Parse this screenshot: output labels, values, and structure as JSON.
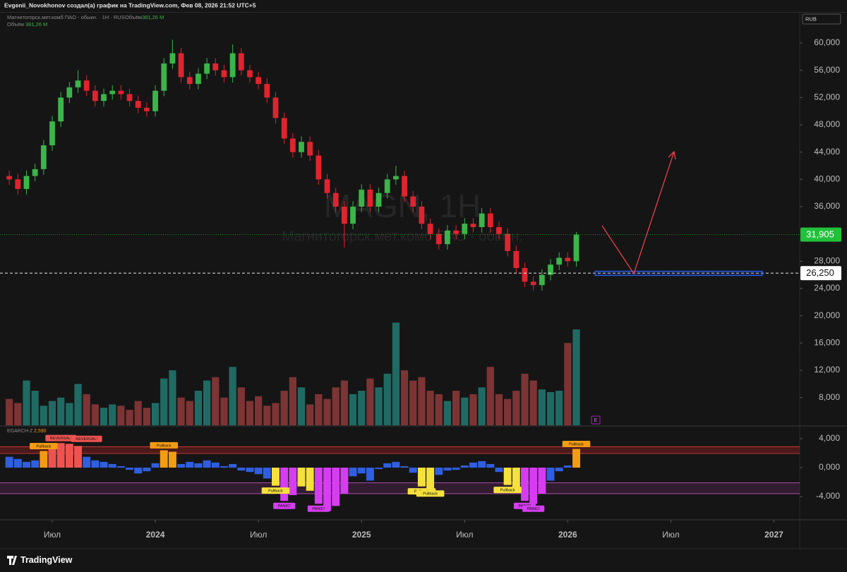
{
  "header": {
    "text": "Evgenii_Novokhonov создал(а) график на TradingView.com, Фев 08, 2026 21:52 UTC+5"
  },
  "chart_data": {
    "type": "candlestick",
    "symbol": "Магнитогорск.мет.комб ПАО - обыкн. · 1Н · RUS",
    "currency": "RUB",
    "watermark": {
      "ticker": "MAGN, 1Н",
      "name": "Магнитогорск.мет.комб ПАО - обыкн."
    },
    "x": [
      3.5,
      4,
      4.5,
      5,
      5.5,
      6,
      6.5,
      7,
      7.5,
      8,
      8.5,
      9,
      9.5,
      10,
      10.5,
      11,
      11.5,
      12,
      12.5,
      13,
      13.5,
      14,
      14.5,
      15,
      15.5,
      16,
      16.5,
      17,
      17.5,
      18,
      18.5,
      19,
      19.5,
      20,
      20.5,
      21,
      21.5,
      22,
      22.5,
      23,
      23.5,
      24,
      24.5,
      25,
      25.5,
      26,
      26.5,
      27,
      27.5,
      28,
      28.5,
      29,
      29.5,
      30,
      30.5,
      31,
      31.5,
      32,
      32.5,
      33,
      33.5,
      34,
      34.5,
      35,
      35.5,
      36,
      36.5
    ],
    "open": [
      40500,
      40000,
      38600,
      40500,
      41500,
      45000,
      48500,
      52000,
      53500,
      54500,
      53000,
      51500,
      52500,
      53000,
      52500,
      51500,
      50500,
      50000,
      53000,
      57000,
      58500,
      55000,
      54000,
      55500,
      57000,
      56000,
      55000,
      58500,
      56000,
      55000,
      54000,
      52000,
      49000,
      46000,
      44000,
      45500,
      43500,
      40000,
      38000,
      36000,
      33500,
      36000,
      38500,
      36000,
      38000,
      40000,
      40500,
      37500,
      36000,
      33500,
      32000,
      30500,
      32500,
      32000,
      33500,
      33000,
      35000,
      33000,
      32000,
      29500,
      27000,
      25000,
      24500,
      26000,
      27500,
      28500,
      28000
    ],
    "high": [
      41300,
      40800,
      41300,
      42300,
      45800,
      49300,
      52800,
      54300,
      56000,
      55300,
      53800,
      53300,
      53800,
      53800,
      53300,
      52300,
      51300,
      53800,
      57800,
      60500,
      59300,
      55800,
      56300,
      57800,
      57800,
      56800,
      59800,
      59300,
      56800,
      55800,
      54800,
      52800,
      49800,
      46800,
      46300,
      46300,
      44300,
      40800,
      38800,
      36800,
      36800,
      39300,
      39300,
      38800,
      40800,
      42000,
      41300,
      38300,
      36800,
      34300,
      32800,
      33300,
      33300,
      34300,
      34300,
      35800,
      35800,
      33800,
      32800,
      30300,
      27800,
      25800,
      26800,
      28300,
      29300,
      29300,
      32300
    ],
    "low": [
      39200,
      37800,
      37800,
      39700,
      40700,
      44200,
      47700,
      51200,
      52700,
      52200,
      50700,
      50700,
      51700,
      51700,
      50700,
      49700,
      49200,
      49200,
      52200,
      56200,
      54200,
      53200,
      53200,
      54700,
      55200,
      54200,
      54200,
      55200,
      54200,
      53200,
      51200,
      48200,
      45200,
      43200,
      43200,
      42700,
      39200,
      37200,
      35200,
      30000,
      32700,
      35200,
      35200,
      35200,
      37200,
      39200,
      36700,
      35200,
      32700,
      31200,
      29700,
      29700,
      31200,
      31200,
      32200,
      32200,
      32200,
      31200,
      28700,
      26200,
      24200,
      23700,
      23700,
      25200,
      26700,
      27200,
      27200
    ],
    "close": [
      40000,
      38600,
      40500,
      41500,
      45000,
      48500,
      52000,
      53500,
      54500,
      53000,
      51500,
      52500,
      53000,
      52500,
      51500,
      50500,
      50000,
      53000,
      57000,
      58500,
      55000,
      54000,
      55500,
      57000,
      56000,
      55000,
      58500,
      56000,
      55000,
      54000,
      52000,
      49000,
      46000,
      44000,
      45500,
      43500,
      40000,
      38000,
      36000,
      33500,
      36000,
      38500,
      36000,
      38000,
      40000,
      40500,
      37500,
      36000,
      33500,
      32000,
      30500,
      32500,
      32000,
      33500,
      33000,
      35000,
      33000,
      32000,
      29500,
      27000,
      25000,
      24500,
      26000,
      27500,
      28500,
      28000,
      31905
    ],
    "up_color": "#3bb54a",
    "down_color": "#e0242f",
    "volume": {
      "name": "Объём",
      "readout": "381,26 M",
      "up_color": "#1f6b64",
      "down_color": "#7d3434",
      "values": [
        7800,
        7200,
        10500,
        9000,
        6800,
        7500,
        8000,
        7200,
        10000,
        8500,
        7000,
        6500,
        7000,
        6800,
        6200,
        7500,
        6500,
        7200,
        10800,
        12000,
        8000,
        7500,
        9000,
        10500,
        11000,
        8000,
        12500,
        9500,
        7500,
        8200,
        6800,
        7200,
        9000,
        11000,
        9500,
        7000,
        8500,
        7800,
        9500,
        10500,
        8500,
        9000,
        10800,
        9500,
        11500,
        19000,
        12000,
        10500,
        11000,
        9000,
        8500,
        7500,
        9000,
        8000,
        8500,
        9500,
        12500,
        8500,
        7800,
        9000,
        11500,
        10500,
        9200,
        8800,
        9000,
        16000,
        18000
      ]
    },
    "earnings_marker": "E",
    "xlim": [
      2.96,
      49.5
    ],
    "xticks": [
      {
        "value": 6,
        "label": "Июл"
      },
      {
        "value": 12,
        "label": "2024"
      },
      {
        "value": 18,
        "label": "Июл"
      },
      {
        "value": 24,
        "label": "2025"
      },
      {
        "value": 30,
        "label": "Июл"
      },
      {
        "value": 36,
        "label": "2026"
      },
      {
        "value": 42,
        "label": "Июл"
      },
      {
        "value": 48,
        "label": "2027"
      }
    ],
    "ylim": [
      3935,
      64240
    ],
    "yticks": [
      {
        "value": 60000,
        "label": "60,000"
      },
      {
        "value": 56000,
        "label": "56,000"
      },
      {
        "value": 52000,
        "label": "52,000"
      },
      {
        "value": 48000,
        "label": "48,000"
      },
      {
        "value": 44000,
        "label": "44,000"
      },
      {
        "value": 40000,
        "label": "40,000"
      },
      {
        "value": 36000,
        "label": "36,000"
      },
      {
        "value": 28000,
        "label": "28,000"
      },
      {
        "value": 24000,
        "label": "24,000"
      },
      {
        "value": 20000,
        "label": "20,000"
      },
      {
        "value": 16000,
        "label": "16,000"
      },
      {
        "value": 12000,
        "label": "12,000"
      },
      {
        "value": 8000,
        "label": "8,000"
      }
    ],
    "price_lines": [
      {
        "value": 31905,
        "label": "31,905",
        "color": "#22c13a"
      },
      {
        "value": 26250,
        "label": "26,250",
        "color": "#ffffff"
      }
    ],
    "oscillator": {
      "name": "EGARCH-Z",
      "value_label": "2,590",
      "values": [
        1.5,
        1.2,
        0.8,
        1.0,
        2.3,
        3.1,
        3.4,
        3.3,
        3.0,
        1.5,
        1.0,
        0.8,
        0.5,
        0.2,
        -0.3,
        -0.8,
        -0.5,
        0.6,
        2.4,
        2.2,
        0.5,
        0.8,
        0.6,
        1.0,
        0.7,
        0.2,
        0.5,
        -0.4,
        -0.6,
        -0.9,
        -1.5,
        -2.5,
        -4.6,
        -3.8,
        -2.6,
        -3.2,
        -5.0,
        -6.0,
        -5.3,
        -3.6,
        -1.2,
        -0.8,
        -1.8,
        -0.2,
        0.6,
        0.8,
        0.2,
        -0.7,
        -2.6,
        -2.9,
        -1.0,
        -0.4,
        -0.3,
        0.3,
        0.7,
        0.9,
        0.5,
        -0.6,
        -2.4,
        -3.5,
        -4.6,
        -5.0,
        -3.6,
        -1.8,
        -0.5,
        0.3,
        2.59
      ],
      "ylim": [
        -7.02,
        5.66
      ],
      "yticks": [
        {
          "value": 4,
          "label": "4,000"
        },
        {
          "value": 0,
          "label": "0,000"
        },
        {
          "value": -4,
          "label": "-4,000"
        }
      ],
      "bands": [
        {
          "range": [
            1.95,
            2.9
          ],
          "color": "#7a1f1f"
        },
        {
          "range": [
            -3.6,
            -2.1
          ],
          "color": "#4a2347"
        }
      ],
      "colors": {
        "neutral": "#2f5fe0",
        "high": "#f39c12",
        "extreme_high": "#ef5350",
        "low": "#f5e13b",
        "extreme_low": "#d63df0"
      },
      "annotations": [
        {
          "text": "Pullback",
          "x": 5.5,
          "value": 2.3
        },
        {
          "text": "REVERSAL!",
          "x": 6.5,
          "value": 3.4
        },
        {
          "text": "REVERSAL!",
          "x": 8,
          "value": 3.3
        },
        {
          "text": "Pullback",
          "x": 12.5,
          "value": 2.4
        },
        {
          "text": "Pullback",
          "x": 19,
          "value": -2.5
        },
        {
          "text": "PANIC!",
          "x": 19.5,
          "value": -4.6
        },
        {
          "text": "PANIC!",
          "x": 21.5,
          "value": -5.0
        },
        {
          "text": "Pullback",
          "x": 27.5,
          "value": -2.6
        },
        {
          "text": "Pullback",
          "x": 28,
          "value": -2.9
        },
        {
          "text": "Pullback",
          "x": 32.5,
          "value": -2.4
        },
        {
          "text": "PANIC!",
          "x": 33.5,
          "value": -4.6
        },
        {
          "text": "PANIC!",
          "x": 34,
          "value": -5.0
        },
        {
          "text": "Pullback",
          "x": 36.5,
          "value": 2.59
        }
      ]
    }
  },
  "footer": {
    "brand": "TradingView"
  }
}
